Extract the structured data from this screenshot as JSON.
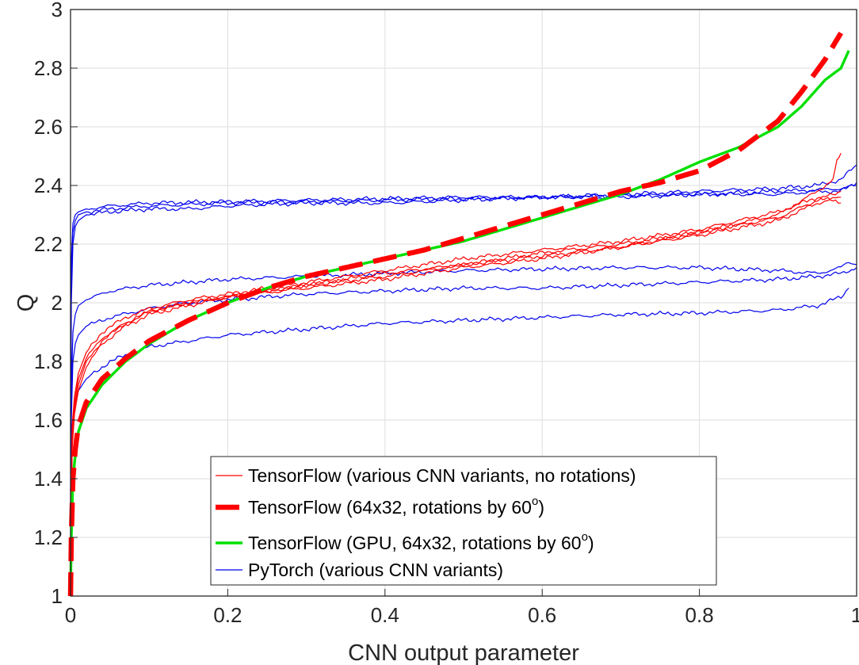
{
  "chart_data": {
    "type": "line",
    "title": "",
    "xlabel": "CNN output parameter",
    "ylabel": "Q",
    "xlim": [
      0,
      1
    ],
    "ylim": [
      1,
      3
    ],
    "grid": true,
    "xticks": [
      0,
      0.2,
      0.4,
      0.6,
      0.8,
      1
    ],
    "xtick_labels": [
      "0",
      "0.2",
      "0.4",
      "0.6",
      "0.8",
      "1"
    ],
    "yticks": [
      1,
      1.2,
      1.4,
      1.6,
      1.8,
      2,
      2.2,
      2.4,
      2.6,
      2.8,
      3
    ],
    "ytick_labels": [
      "1",
      "1.2",
      "1.4",
      "1.6",
      "1.8",
      "2",
      "2.2",
      "2.4",
      "2.6",
      "2.8",
      "3"
    ],
    "legend": {
      "placement": "bottom-center",
      "entries": [
        {
          "text": "TensorFlow (various CNN variants, no rotations)",
          "sup": "",
          "after": "",
          "color": "#ff0000",
          "style": "thin"
        },
        {
          "text": "TensorFlow (64x32, rotations by 60",
          "sup": "o",
          "after": ")",
          "color": "#ff0000",
          "style": "dashed"
        },
        {
          "text": "TensorFlow (GPU, 64x32, rotations by 60",
          "sup": "o",
          "after": ")",
          "color": "#00e000",
          "style": "thick"
        },
        {
          "text": "PyTorch (various CNN variants)",
          "sup": "",
          "after": "",
          "color": "#0000ee",
          "style": "thin"
        }
      ]
    },
    "series": [
      {
        "name": "TensorFlow (64x32, rotations by 60o)",
        "group": "tf-rot",
        "color": "#ff0000",
        "style": "dashed",
        "x": [
          0,
          0.001,
          0.003,
          0.006,
          0.01,
          0.02,
          0.04,
          0.07,
          0.1,
          0.15,
          0.2,
          0.25,
          0.3,
          0.35,
          0.4,
          0.45,
          0.5,
          0.55,
          0.6,
          0.65,
          0.7,
          0.75,
          0.8,
          0.85,
          0.9,
          0.93,
          0.96,
          0.98
        ],
        "y": [
          1.0,
          1.2,
          1.4,
          1.5,
          1.58,
          1.66,
          1.74,
          1.81,
          1.87,
          1.94,
          2.0,
          2.05,
          2.09,
          2.12,
          2.15,
          2.18,
          2.22,
          2.26,
          2.3,
          2.34,
          2.38,
          2.41,
          2.45,
          2.52,
          2.62,
          2.72,
          2.83,
          2.92
        ]
      },
      {
        "name": "TensorFlow (GPU, 64x32, rotations by 60o)",
        "group": "tf-gpu",
        "color": "#00e000",
        "style": "thick",
        "x": [
          0,
          0.001,
          0.003,
          0.006,
          0.01,
          0.02,
          0.04,
          0.07,
          0.1,
          0.15,
          0.2,
          0.25,
          0.3,
          0.35,
          0.4,
          0.45,
          0.5,
          0.55,
          0.6,
          0.65,
          0.7,
          0.75,
          0.8,
          0.85,
          0.9,
          0.93,
          0.96,
          0.98,
          0.99
        ],
        "y": [
          1.0,
          1.2,
          1.4,
          1.48,
          1.56,
          1.64,
          1.72,
          1.8,
          1.86,
          1.94,
          2.0,
          2.05,
          2.09,
          2.12,
          2.15,
          2.18,
          2.21,
          2.25,
          2.29,
          2.33,
          2.37,
          2.42,
          2.48,
          2.53,
          2.6,
          2.67,
          2.76,
          2.8,
          2.86
        ]
      },
      {
        "name": "TensorFlow (various CNN variants, no rotations) #1",
        "group": "tf-var",
        "color": "#ff0000",
        "style": "thin",
        "x": [
          0,
          0.002,
          0.005,
          0.01,
          0.02,
          0.04,
          0.07,
          0.1,
          0.15,
          0.2,
          0.3,
          0.4,
          0.5,
          0.6,
          0.7,
          0.8,
          0.9,
          0.95,
          0.97,
          0.975,
          0.98
        ],
        "y": [
          1.0,
          1.5,
          1.62,
          1.7,
          1.78,
          1.86,
          1.92,
          1.96,
          1.99,
          2.02,
          2.06,
          2.1,
          2.13,
          2.16,
          2.19,
          2.24,
          2.3,
          2.38,
          2.42,
          2.48,
          2.51
        ]
      },
      {
        "name": "TensorFlow (various CNN variants, no rotations) #2",
        "group": "tf-var",
        "color": "#ff0000",
        "style": "thin",
        "x": [
          0,
          0.002,
          0.005,
          0.01,
          0.02,
          0.04,
          0.07,
          0.1,
          0.15,
          0.2,
          0.3,
          0.4,
          0.5,
          0.6,
          0.7,
          0.8,
          0.9,
          0.95,
          0.98
        ],
        "y": [
          1.0,
          1.55,
          1.66,
          1.74,
          1.81,
          1.88,
          1.93,
          1.97,
          2.0,
          2.02,
          2.05,
          2.08,
          2.12,
          2.15,
          2.19,
          2.23,
          2.28,
          2.34,
          2.36
        ]
      },
      {
        "name": "TensorFlow (various CNN variants, no rotations) #3",
        "group": "tf-var",
        "color": "#ff0000",
        "style": "thin",
        "x": [
          0,
          0.002,
          0.005,
          0.01,
          0.02,
          0.04,
          0.07,
          0.1,
          0.15,
          0.2,
          0.3,
          0.4,
          0.5,
          0.6,
          0.7,
          0.8,
          0.9,
          0.95,
          0.98
        ],
        "y": [
          1.0,
          1.58,
          1.68,
          1.76,
          1.83,
          1.9,
          1.95,
          1.98,
          2.01,
          2.03,
          2.07,
          2.11,
          2.15,
          2.18,
          2.21,
          2.25,
          2.31,
          2.36,
          2.34
        ]
      },
      {
        "name": "TensorFlow (various CNN variants, no rotations) #4",
        "group": "tf-var",
        "color": "#ff0000",
        "style": "thin",
        "x": [
          0,
          0.002,
          0.005,
          0.01,
          0.02,
          0.04,
          0.07,
          0.1,
          0.15,
          0.2,
          0.3,
          0.4,
          0.5,
          0.6,
          0.7,
          0.8,
          0.9,
          0.95,
          0.98
        ],
        "y": [
          1.0,
          1.52,
          1.64,
          1.72,
          1.8,
          1.87,
          1.93,
          1.97,
          2.0,
          2.02,
          2.06,
          2.09,
          2.13,
          2.17,
          2.2,
          2.24,
          2.29,
          2.35,
          2.38
        ]
      },
      {
        "name": "PyTorch (various CNN variants) #1",
        "group": "pt",
        "color": "#0000ee",
        "style": "thin",
        "x": [
          0,
          0.001,
          0.003,
          0.006,
          0.01,
          0.02,
          0.05,
          0.1,
          0.2,
          0.3,
          0.4,
          0.5,
          0.6,
          0.7,
          0.8,
          0.9,
          0.95,
          0.98,
          1.0
        ],
        "y": [
          1.0,
          2.15,
          2.27,
          2.3,
          2.31,
          2.32,
          2.33,
          2.34,
          2.345,
          2.35,
          2.355,
          2.36,
          2.36,
          2.365,
          2.37,
          2.38,
          2.385,
          2.39,
          2.4
        ]
      },
      {
        "name": "PyTorch (various CNN variants) #2",
        "group": "pt",
        "color": "#0000ee",
        "style": "thin",
        "x": [
          0,
          0.001,
          0.003,
          0.006,
          0.01,
          0.02,
          0.05,
          0.1,
          0.2,
          0.3,
          0.4,
          0.5,
          0.6,
          0.7,
          0.8,
          0.9,
          0.95,
          0.98,
          1.0
        ],
        "y": [
          1.0,
          2.1,
          2.24,
          2.28,
          2.3,
          2.31,
          2.32,
          2.33,
          2.34,
          2.345,
          2.35,
          2.355,
          2.36,
          2.37,
          2.38,
          2.39,
          2.4,
          2.42,
          2.47
        ]
      },
      {
        "name": "PyTorch (various CNN variants) #3",
        "group": "pt",
        "color": "#0000ee",
        "style": "thin",
        "x": [
          0,
          0.001,
          0.003,
          0.006,
          0.01,
          0.02,
          0.05,
          0.1,
          0.15,
          0.2,
          0.3,
          0.4,
          0.5,
          0.6,
          0.7,
          0.8,
          0.9,
          0.95,
          0.98,
          1.0
        ],
        "y": [
          1.0,
          2.0,
          2.2,
          2.26,
          2.28,
          2.3,
          2.31,
          2.32,
          2.32,
          2.33,
          2.34,
          2.34,
          2.35,
          2.36,
          2.36,
          2.37,
          2.37,
          2.38,
          2.38,
          2.41
        ]
      },
      {
        "name": "PyTorch (various CNN variants) #4",
        "group": "pt",
        "color": "#0000ee",
        "style": "thin",
        "x": [
          0,
          0.001,
          0.003,
          0.006,
          0.01,
          0.02,
          0.05,
          0.1,
          0.2,
          0.3,
          0.4,
          0.5,
          0.6,
          0.7,
          0.8,
          0.9,
          0.95,
          0.98,
          0.99,
          1.0
        ],
        "y": [
          1.0,
          1.7,
          1.9,
          1.96,
          1.99,
          2.01,
          2.04,
          2.06,
          2.08,
          2.09,
          2.1,
          2.11,
          2.115,
          2.12,
          2.12,
          2.11,
          2.1,
          2.12,
          2.14,
          2.13
        ]
      },
      {
        "name": "PyTorch (various CNN variants) #5",
        "group": "pt",
        "color": "#0000ee",
        "style": "thin",
        "x": [
          0,
          0.001,
          0.003,
          0.006,
          0.01,
          0.02,
          0.05,
          0.1,
          0.15,
          0.2,
          0.3,
          0.4,
          0.5,
          0.6,
          0.7,
          0.8,
          0.9,
          0.95,
          0.98,
          1.0
        ],
        "y": [
          1.0,
          1.6,
          1.8,
          1.86,
          1.89,
          1.92,
          1.95,
          1.98,
          2.0,
          2.01,
          2.03,
          2.04,
          2.05,
          2.05,
          2.06,
          2.07,
          2.08,
          2.09,
          2.1,
          2.12
        ]
      },
      {
        "name": "PyTorch (various CNN variants) #6",
        "group": "pt",
        "color": "#0000ee",
        "style": "thin",
        "x": [
          0,
          0.001,
          0.003,
          0.006,
          0.01,
          0.02,
          0.05,
          0.1,
          0.15,
          0.2,
          0.3,
          0.4,
          0.5,
          0.6,
          0.7,
          0.8,
          0.9,
          0.95,
          0.98,
          0.99
        ],
        "y": [
          1.0,
          1.4,
          1.6,
          1.66,
          1.7,
          1.74,
          1.8,
          1.85,
          1.87,
          1.89,
          1.91,
          1.93,
          1.94,
          1.95,
          1.96,
          1.965,
          1.975,
          1.99,
          2.02,
          2.05
        ]
      }
    ]
  }
}
